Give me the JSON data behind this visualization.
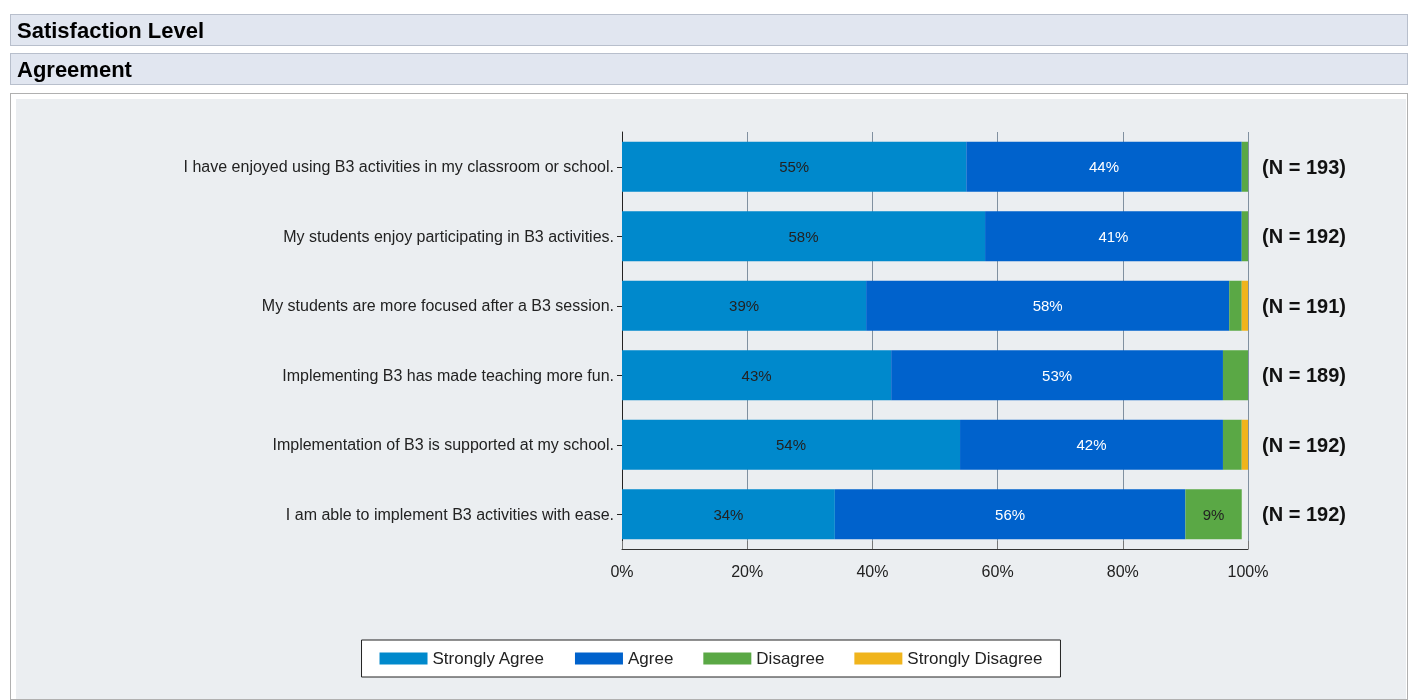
{
  "chart_data": {
    "type": "bar",
    "title": "Satisfaction Level",
    "subtitle": "Agreement",
    "orientation": "horizontal",
    "stacked": true,
    "categories": [
      "I have enjoyed using B3 activities in my classroom or school.",
      "My students enjoy participating in B3 activities.",
      "My students are more focused after a B3 session.",
      "Implementing B3 has made teaching more fun.",
      "Implementation of B3 is supported at my school.",
      "I am able to implement B3 activities with ease."
    ],
    "series": [
      {
        "name": "Strongly Agree",
        "color": "#0089cc",
        "values": [
          55,
          58,
          39,
          43,
          54,
          34
        ],
        "value_labels": [
          "55%",
          "58%",
          "39%",
          "43%",
          "54%",
          "34%"
        ]
      },
      {
        "name": "Agree",
        "color": "#0062cc",
        "values": [
          44,
          41,
          58,
          53,
          42,
          56
        ],
        "value_labels": [
          "44%",
          "41%",
          "58%",
          "53%",
          "42%",
          "56%"
        ]
      },
      {
        "name": "Disagree",
        "color": "#5aa845",
        "values": [
          1,
          1,
          2,
          4,
          3,
          9
        ],
        "value_labels": [
          null,
          null,
          null,
          null,
          null,
          "9%"
        ]
      },
      {
        "name": "Strongly Disagree",
        "color": "#f0b41c",
        "values": [
          null,
          null,
          1,
          null,
          1,
          null
        ],
        "value_labels": [
          null,
          null,
          null,
          null,
          null,
          null
        ]
      }
    ],
    "xlim": [
      0,
      100
    ],
    "xticks": [
      {
        "value": 0,
        "label": "0%"
      },
      {
        "value": 20,
        "label": "20%"
      },
      {
        "value": 40,
        "label": "40%"
      },
      {
        "value": 60,
        "label": "60%"
      },
      {
        "value": 80,
        "label": "80%"
      },
      {
        "value": 100,
        "label": "100%"
      }
    ],
    "grid": "x",
    "legend": "bottom",
    "annotations": [
      "(N = 193)",
      "(N = 192)",
      "(N = 191)",
      "(N = 189)",
      "(N = 192)",
      "(N = 192)"
    ]
  }
}
